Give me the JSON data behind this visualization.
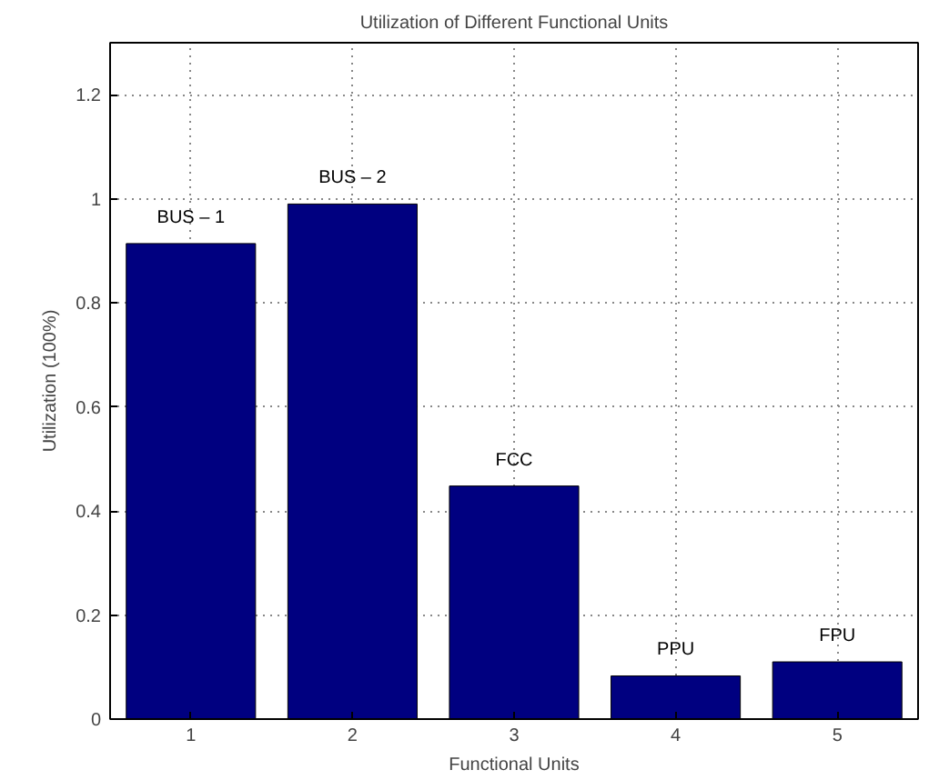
{
  "chart_data": {
    "type": "bar",
    "title": "Utilization of Different Functional Units",
    "xlabel": "Functional Units",
    "ylabel": "Utilization (100%)",
    "x": [
      1,
      2,
      3,
      4,
      5
    ],
    "series": [
      {
        "color": "#000080",
        "values": [
          0.914,
          0.99,
          0.448,
          0.083,
          0.11
        ]
      }
    ],
    "xlim": [
      0.5,
      5.5
    ],
    "xticks": [
      1,
      2,
      3,
      4,
      5
    ],
    "ylim": [
      0,
      1.3
    ],
    "yticks": [
      0,
      0.2,
      0.4,
      0.6,
      0.8,
      1,
      1.2
    ],
    "grid": true,
    "annotations": [
      {
        "text": "BUS – 1",
        "x": 1,
        "y": 0.914
      },
      {
        "text": "BUS – 2",
        "x": 2,
        "y": 0.99
      },
      {
        "text": "FCC",
        "x": 3,
        "y": 0.448
      },
      {
        "text": "PPU",
        "x": 4,
        "y": 0.083
      },
      {
        "text": "FPU",
        "x": 5,
        "y": 0.11
      }
    ]
  }
}
